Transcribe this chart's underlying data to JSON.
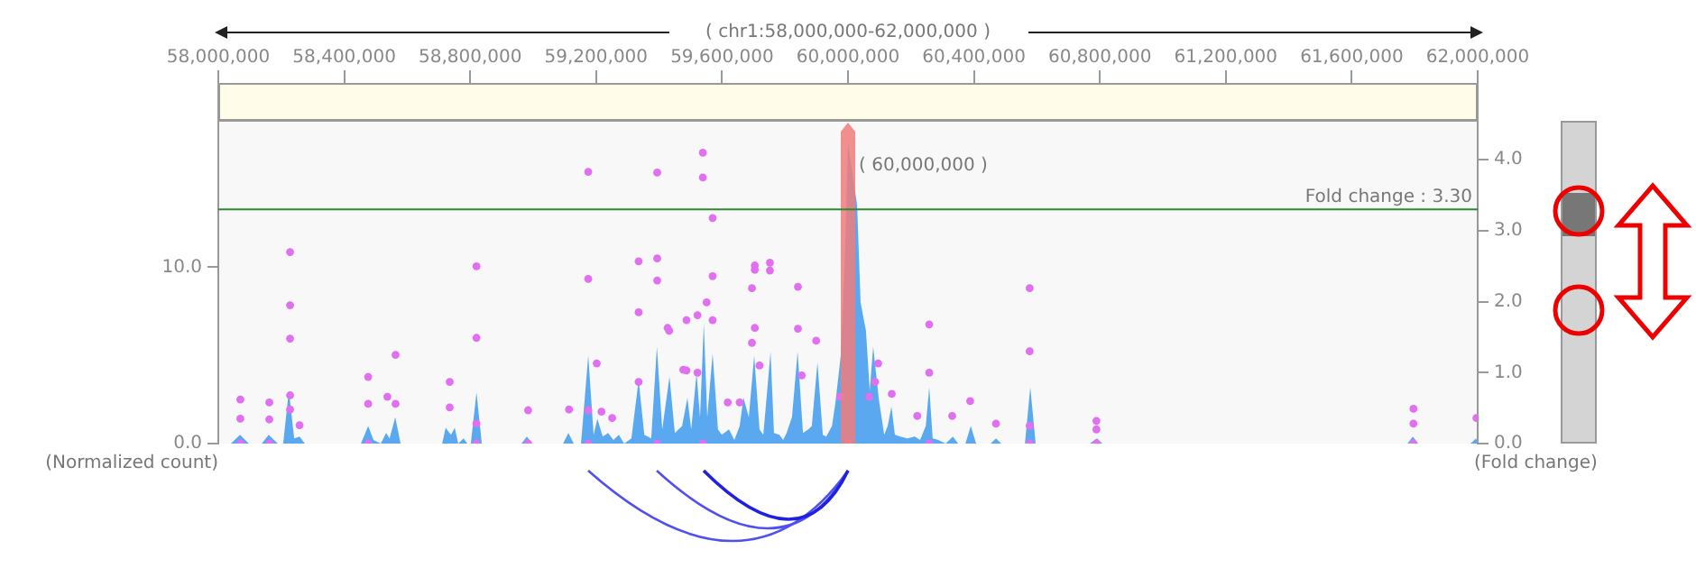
{
  "chart_data": {
    "type": "area",
    "title": "( chr1:58,000,000-62,000,000 )",
    "ylabel": "(Normalized count)",
    "y2label": "(Fold change)",
    "xlim": [
      58000000,
      62000000
    ],
    "xticks": [
      {
        "value": 58000000,
        "label": "58,000,000"
      },
      {
        "value": 58400000,
        "label": "58,400,000"
      },
      {
        "value": 58800000,
        "label": "58,800,000"
      },
      {
        "value": 59200000,
        "label": "59,200,000"
      },
      {
        "value": 59600000,
        "label": "59,600,000"
      },
      {
        "value": 60000000,
        "label": "60,000,000"
      },
      {
        "value": 60400000,
        "label": "60,400,000"
      },
      {
        "value": 60800000,
        "label": "60,800,000"
      },
      {
        "value": 61200000,
        "label": "61,200,000"
      },
      {
        "value": 61600000,
        "label": "61,600,000"
      },
      {
        "value": 62000000,
        "label": "62,000,000"
      }
    ],
    "ylim": [
      0,
      18.3
    ],
    "yticks": [
      {
        "value": 0,
        "label": "0.0"
      },
      {
        "value": 10,
        "label": "10.0"
      }
    ],
    "y2lim": [
      0,
      4.55
    ],
    "y2ticks": [
      {
        "value": 0,
        "label": "0.0"
      },
      {
        "value": 1,
        "label": "1.0"
      },
      {
        "value": 2,
        "label": "2.0"
      },
      {
        "value": 3,
        "label": "3.0"
      },
      {
        "value": 4,
        "label": "4.0"
      }
    ],
    "series": [
      {
        "color": "#5aa9f0",
        "x": [
          58000000,
          58040000,
          58069000,
          58097000,
          58138000,
          58160000,
          58189000,
          58206000,
          58224000,
          58241000,
          58258000,
          58275000,
          58453000,
          58476000,
          58493000,
          58516000,
          58533000,
          58544000,
          58562000,
          58579000,
          58711000,
          58722000,
          58739000,
          58751000,
          58762000,
          58779000,
          58791000,
          58802000,
          58820000,
          58837000,
          58963000,
          58980000,
          58997000,
          59095000,
          59112000,
          59129000,
          59152000,
          59175000,
          59192000,
          59204000,
          59221000,
          59238000,
          59255000,
          59272000,
          59289000,
          59312000,
          59335000,
          59353000,
          59375000,
          59393000,
          59410000,
          59433000,
          59450000,
          59473000,
          59490000,
          59502000,
          59519000,
          59530000,
          59542000,
          59553000,
          59570000,
          59587000,
          59599000,
          59622000,
          59639000,
          59656000,
          59668000,
          59685000,
          59702000,
          59719000,
          59731000,
          59754000,
          59765000,
          59782000,
          59794000,
          59805000,
          59822000,
          59840000,
          59857000,
          59874000,
          59885000,
          59903000,
          59920000,
          59931000,
          59949000,
          59960000,
          59977000,
          59989000,
          60000000,
          60017000,
          60029000,
          60040000,
          60057000,
          60069000,
          60080000,
          60098000,
          60115000,
          60126000,
          60138000,
          60149000,
          60166000,
          60189000,
          60212000,
          60229000,
          60247000,
          60258000,
          60269000,
          60287000,
          60310000,
          60333000,
          60350000,
          60373000,
          60390000,
          60407000,
          60453000,
          60470000,
          60487000,
          60562000,
          60579000,
          60596000,
          60768000,
          60791000,
          60808000,
          61777000,
          61794000,
          61811000,
          61977000,
          61995000,
          62000000
        ],
        "values": [
          0,
          0,
          0.5,
          0,
          0,
          0.5,
          0,
          0,
          3.0,
          0.3,
          0.4,
          0,
          0,
          1.0,
          0.2,
          0,
          0.6,
          0.3,
          1.5,
          0,
          0,
          0.9,
          0.5,
          0.9,
          0,
          0.3,
          0,
          0,
          2.9,
          0,
          0,
          0.4,
          0,
          0,
          0.6,
          0,
          0,
          5.0,
          0.5,
          1.4,
          0.4,
          0.6,
          0.2,
          0.5,
          0,
          0.3,
          3.6,
          0.5,
          0.3,
          5.5,
          0.8,
          3.8,
          0.6,
          1.0,
          2.6,
          0.8,
          4.0,
          1.5,
          6.8,
          1.5,
          5.1,
          0.8,
          0.5,
          0.8,
          0.2,
          1.0,
          2.6,
          1.5,
          5.0,
          0.8,
          0.5,
          5.2,
          0.6,
          0.5,
          0.2,
          0.6,
          1.5,
          5.2,
          0.6,
          0.8,
          1.0,
          4.6,
          0.5,
          0.4,
          1.0,
          2.3,
          5.0,
          10.0,
          17.0,
          15.0,
          13.5,
          8.0,
          6.4,
          3.0,
          5.5,
          2.5,
          0.5,
          1.0,
          2.1,
          0.5,
          0.4,
          0.3,
          0.4,
          0.2,
          1.0,
          3.2,
          0.3,
          0.2,
          0,
          0.4,
          0,
          0,
          1.0,
          0,
          0,
          0.3,
          0,
          0,
          3.2,
          0,
          0,
          0.3,
          0,
          0,
          0.4,
          0,
          0,
          0.3,
          0
        ]
      },
      {
        "type": "scatter",
        "axis": "y2",
        "color": "#e070f0",
        "marker": "circle",
        "x": [
          58070000,
          58070000,
          58070000,
          58162000,
          58162000,
          58162000,
          58228000,
          58228000,
          58228000,
          58228000,
          58228000,
          58258000,
          58476000,
          58476000,
          58476000,
          58537000,
          58563000,
          58563000,
          58735000,
          58735000,
          58820000,
          58820000,
          58820000,
          58820000,
          58984000,
          58984000,
          59114000,
          59175000,
          59175000,
          59175000,
          59175000,
          59202000,
          59217000,
          59251000,
          59335000,
          59335000,
          59335000,
          59394000,
          59394000,
          59394000,
          59394000,
          59427000,
          59432000,
          59477000,
          59487000,
          59487000,
          59522000,
          59522000,
          59539000,
          59539000,
          59539000,
          59551000,
          59570000,
          59570000,
          59570000,
          59618000,
          59656000,
          59695000,
          59695000,
          59704000,
          59704000,
          59704000,
          59719000,
          59752000,
          59752000,
          59841000,
          59841000,
          59853000,
          59899000,
          59975000,
          60000000,
          60067000,
          60086000,
          60096000,
          60139000,
          60220000,
          60258000,
          60258000,
          60258000,
          60331000,
          60388000,
          60470000,
          60577000,
          60577000,
          60577000,
          60577000,
          60789000,
          60789000,
          60789000,
          61796000,
          61796000,
          61796000,
          61996000
        ],
        "values": [
          0.62,
          0.35,
          0,
          0.58,
          0.34,
          0,
          2.7,
          1.95,
          1.48,
          0.68,
          0.48,
          0.26,
          0.94,
          0.56,
          0,
          0.66,
          1.25,
          0.56,
          0.87,
          0.51,
          2.5,
          1.49,
          0.28,
          0,
          0.47,
          0,
          0.48,
          3.83,
          2.32,
          0.47,
          0,
          1.13,
          0.45,
          0.36,
          2.57,
          1.85,
          0.87,
          3.82,
          2.61,
          2.3,
          0,
          1.63,
          1.59,
          1.04,
          1.74,
          1.03,
          1.81,
          1.0,
          4.1,
          3.75,
          0,
          1.99,
          3.18,
          2.36,
          1.74,
          0.58,
          0.58,
          2.19,
          1.42,
          2.51,
          2.45,
          1.63,
          1.1,
          2.55,
          2.44,
          2.21,
          1.62,
          0.96,
          1.45,
          0.66,
          0,
          0.66,
          0.87,
          1.13,
          0.7,
          0.39,
          1.68,
          1.0,
          0,
          0.39,
          0.6,
          0.28,
          2.19,
          1.3,
          0.25,
          0,
          0.32,
          0.2,
          0,
          0.49,
          0.28,
          0,
          0.36
        ]
      }
    ],
    "ref_lines": [
      {
        "axis": "y2",
        "value": 3.3,
        "label": "Fold change : 3.30",
        "color": "#2e8b2e"
      }
    ],
    "bands": [
      {
        "axis": "x",
        "from": 59977000,
        "to": 60023000,
        "label": "( 60,000,000 )",
        "color": "#f07c7c"
      }
    ]
  }
}
